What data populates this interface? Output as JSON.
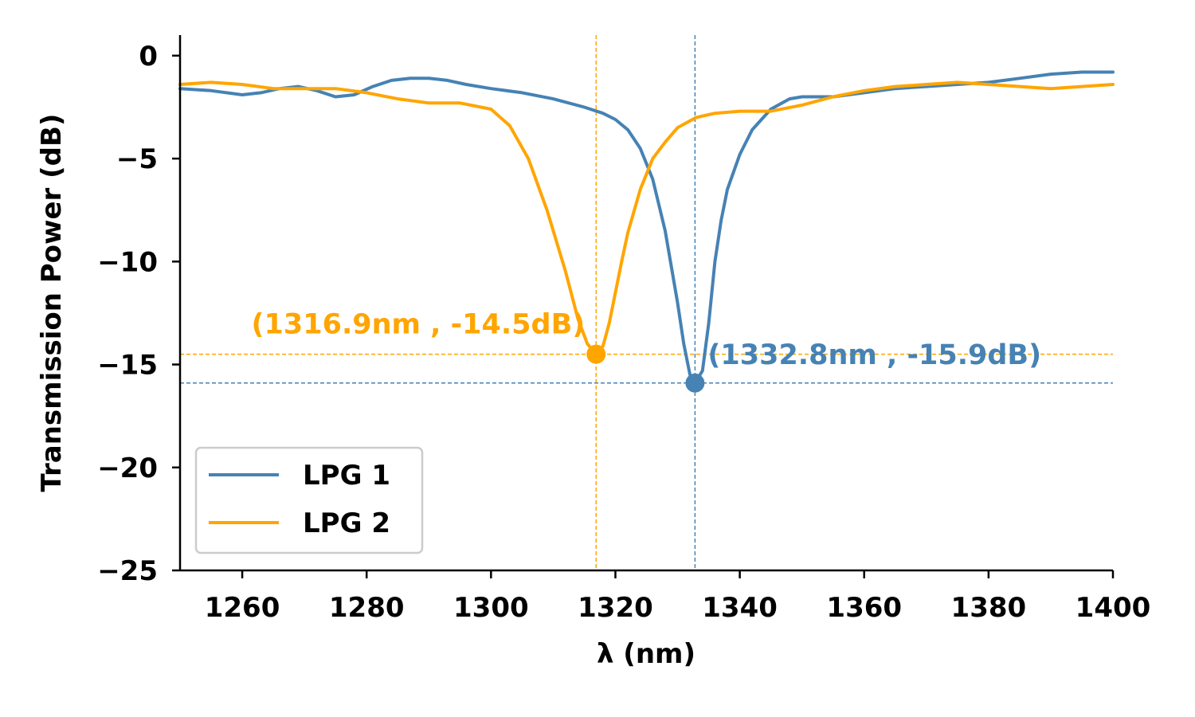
{
  "chart_data": {
    "type": "line",
    "title": "",
    "xlabel": "λ (nm)",
    "ylabel": "Transmission Power (dB)",
    "xlim": [
      1250,
      1400
    ],
    "ylim": [
      -25,
      1
    ],
    "xticks": [
      1260,
      1280,
      1300,
      1320,
      1340,
      1360,
      1380,
      1400
    ],
    "yticks": [
      0,
      -5,
      -10,
      -15,
      -20,
      -25
    ],
    "ytick_labels": [
      "0",
      "−5",
      "−10",
      "−15",
      "−20",
      "−25"
    ],
    "grid": false,
    "legend_position": "lower-left",
    "series": [
      {
        "name": "LPG 1",
        "color": "#4682b4",
        "x": [
          1250,
          1255,
          1260,
          1263,
          1266,
          1269,
          1272,
          1275,
          1278,
          1281,
          1284,
          1287,
          1290,
          1293,
          1296,
          1300,
          1305,
          1310,
          1315,
          1318,
          1320,
          1322,
          1324,
          1326,
          1328,
          1330,
          1331,
          1332,
          1332.8,
          1334,
          1335,
          1336,
          1337,
          1338,
          1340,
          1342,
          1345,
          1348,
          1350,
          1355,
          1360,
          1365,
          1370,
          1375,
          1380,
          1385,
          1390,
          1395,
          1400
        ],
        "y": [
          -1.6,
          -1.7,
          -1.9,
          -1.8,
          -1.6,
          -1.5,
          -1.7,
          -2.0,
          -1.9,
          -1.5,
          -1.2,
          -1.1,
          -1.1,
          -1.2,
          -1.4,
          -1.6,
          -1.8,
          -2.1,
          -2.5,
          -2.8,
          -3.1,
          -3.6,
          -4.5,
          -6.0,
          -8.5,
          -12.0,
          -14.0,
          -15.5,
          -15.9,
          -15.3,
          -13.0,
          -10.0,
          -8.0,
          -6.5,
          -4.8,
          -3.6,
          -2.6,
          -2.1,
          -2.0,
          -2.0,
          -1.8,
          -1.6,
          -1.5,
          -1.4,
          -1.3,
          -1.1,
          -0.9,
          -0.8,
          -0.8
        ]
      },
      {
        "name": "LPG 2",
        "color": "#ffa500",
        "x": [
          1250,
          1255,
          1260,
          1265,
          1270,
          1275,
          1280,
          1285,
          1290,
          1295,
          1300,
          1303,
          1306,
          1309,
          1312,
          1314,
          1315.5,
          1316.9,
          1318,
          1319,
          1320,
          1321,
          1322,
          1324,
          1326,
          1328,
          1330,
          1333,
          1336,
          1340,
          1345,
          1350,
          1355,
          1360,
          1365,
          1370,
          1375,
          1380,
          1385,
          1390,
          1395,
          1400
        ],
        "y": [
          -1.4,
          -1.3,
          -1.4,
          -1.6,
          -1.6,
          -1.6,
          -1.8,
          -2.1,
          -2.3,
          -2.3,
          -2.6,
          -3.4,
          -5.0,
          -7.5,
          -10.5,
          -12.8,
          -14.0,
          -14.5,
          -14.1,
          -13.0,
          -11.5,
          -10.0,
          -8.6,
          -6.5,
          -5.0,
          -4.2,
          -3.5,
          -3.0,
          -2.8,
          -2.7,
          -2.7,
          -2.4,
          -2.0,
          -1.7,
          -1.5,
          -1.4,
          -1.3,
          -1.4,
          -1.5,
          -1.6,
          -1.5,
          -1.4
        ]
      }
    ],
    "annotations": [
      {
        "text": "(1316.9nm , -14.5dB)",
        "x": 1316.9,
        "y": -14.5,
        "color": "#ffa500",
        "align": "end"
      },
      {
        "text": "(1332.8nm , -15.9dB)",
        "x": 1332.8,
        "y": -15.9,
        "color": "#4682b4",
        "align": "start"
      }
    ]
  }
}
